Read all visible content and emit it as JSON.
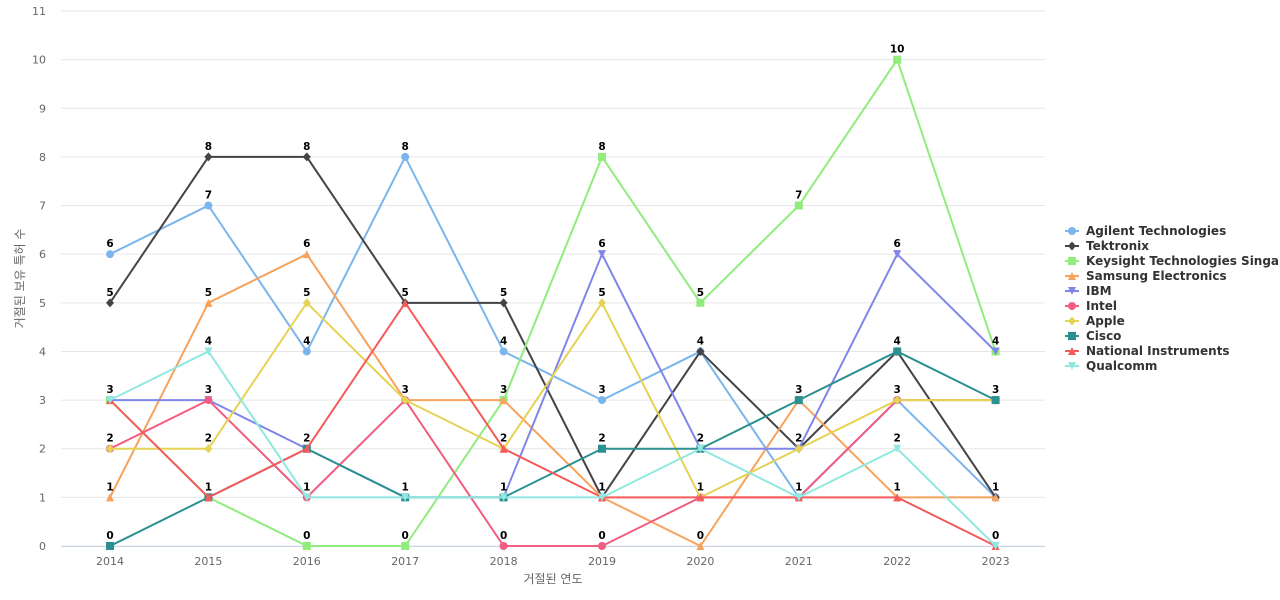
{
  "chart_data": {
    "type": "line",
    "x": [
      "2014",
      "2015",
      "2016",
      "2017",
      "2018",
      "2019",
      "2020",
      "2021",
      "2022",
      "2023"
    ],
    "xlabel": "거절된 연도",
    "ylabel": "거절된 보유 특허 수",
    "ylim": [
      0,
      11
    ],
    "yticks": [
      0,
      1,
      2,
      3,
      4,
      5,
      6,
      7,
      8,
      9,
      10,
      11
    ],
    "grid": true,
    "legend_position": "right",
    "series": [
      {
        "name": "Agilent Technologies",
        "color": "#7cb5ec",
        "marker": "circle",
        "values": [
          6,
          7,
          4,
          8,
          4,
          3,
          4,
          1,
          3,
          1
        ]
      },
      {
        "name": "Tektronix",
        "color": "#434348",
        "marker": "diamond",
        "values": [
          5,
          8,
          8,
          5,
          5,
          1,
          4,
          2,
          4,
          1
        ]
      },
      {
        "name": "Keysight Technologies Singa...",
        "color": "#90ed7d",
        "marker": "square",
        "values": [
          3,
          1,
          0,
          0,
          3,
          8,
          5,
          7,
          10,
          4
        ]
      },
      {
        "name": "Samsung Electronics",
        "color": "#f7a35c",
        "marker": "triangle",
        "values": [
          1,
          5,
          6,
          3,
          3,
          1,
          0,
          3,
          1,
          1
        ]
      },
      {
        "name": "IBM",
        "color": "#8085e9",
        "marker": "triangle-down",
        "values": [
          3,
          3,
          2,
          1,
          1,
          6,
          2,
          2,
          6,
          4
        ]
      },
      {
        "name": "Intel",
        "color": "#f15c80",
        "marker": "circle",
        "values": [
          2,
          3,
          1,
          3,
          0,
          0,
          1,
          1,
          3,
          3
        ]
      },
      {
        "name": "Apple",
        "color": "#e4d354",
        "marker": "diamond",
        "values": [
          2,
          2,
          5,
          3,
          2,
          5,
          1,
          2,
          3,
          3
        ]
      },
      {
        "name": "Cisco",
        "color": "#2b908f",
        "marker": "square",
        "values": [
          0,
          1,
          2,
          1,
          1,
          2,
          2,
          3,
          4,
          3
        ]
      },
      {
        "name": "National Instruments",
        "color": "#f45b5b",
        "marker": "triangle",
        "values": [
          3,
          1,
          2,
          5,
          2,
          1,
          1,
          1,
          1,
          0
        ]
      },
      {
        "name": "Qualcomm",
        "color": "#91e8e1",
        "marker": "triangle-down",
        "values": [
          3,
          4,
          1,
          1,
          1,
          1,
          2,
          1,
          2,
          0
        ]
      }
    ],
    "data_labels": [
      {
        "x_index": 0,
        "value": 6
      },
      {
        "x_index": 0,
        "value": 5
      },
      {
        "x_index": 0,
        "value": 3
      },
      {
        "x_index": 0,
        "value": 2
      },
      {
        "x_index": 0,
        "value": 1
      },
      {
        "x_index": 0,
        "value": 0
      },
      {
        "x_index": 1,
        "value": 8
      },
      {
        "x_index": 1,
        "value": 7
      },
      {
        "x_index": 1,
        "value": 5
      },
      {
        "x_index": 1,
        "value": 4
      },
      {
        "x_index": 1,
        "value": 3
      },
      {
        "x_index": 1,
        "value": 2
      },
      {
        "x_index": 1,
        "value": 1
      },
      {
        "x_index": 2,
        "value": 8
      },
      {
        "x_index": 2,
        "value": 6
      },
      {
        "x_index": 2,
        "value": 5
      },
      {
        "x_index": 2,
        "value": 4
      },
      {
        "x_index": 2,
        "value": 2
      },
      {
        "x_index": 2,
        "value": 1
      },
      {
        "x_index": 2,
        "value": 0
      },
      {
        "x_index": 3,
        "value": 8
      },
      {
        "x_index": 3,
        "value": 5
      },
      {
        "x_index": 3,
        "value": 3
      },
      {
        "x_index": 3,
        "value": 1
      },
      {
        "x_index": 3,
        "value": 0
      },
      {
        "x_index": 4,
        "value": 5
      },
      {
        "x_index": 4,
        "value": 4
      },
      {
        "x_index": 4,
        "value": 3
      },
      {
        "x_index": 4,
        "value": 2
      },
      {
        "x_index": 4,
        "value": 1
      },
      {
        "x_index": 4,
        "value": 0
      },
      {
        "x_index": 5,
        "value": 8
      },
      {
        "x_index": 5,
        "value": 6
      },
      {
        "x_index": 5,
        "value": 5
      },
      {
        "x_index": 5,
        "value": 3
      },
      {
        "x_index": 5,
        "value": 2
      },
      {
        "x_index": 5,
        "value": 1
      },
      {
        "x_index": 5,
        "value": 0
      },
      {
        "x_index": 6,
        "value": 5
      },
      {
        "x_index": 6,
        "value": 4
      },
      {
        "x_index": 6,
        "value": 2
      },
      {
        "x_index": 6,
        "value": 1
      },
      {
        "x_index": 6,
        "value": 0
      },
      {
        "x_index": 7,
        "value": 7
      },
      {
        "x_index": 7,
        "value": 3
      },
      {
        "x_index": 7,
        "value": 2
      },
      {
        "x_index": 7,
        "value": 1
      },
      {
        "x_index": 8,
        "value": 10
      },
      {
        "x_index": 8,
        "value": 6
      },
      {
        "x_index": 8,
        "value": 4
      },
      {
        "x_index": 8,
        "value": 3
      },
      {
        "x_index": 8,
        "value": 2
      },
      {
        "x_index": 8,
        "value": 1
      },
      {
        "x_index": 9,
        "value": 4
      },
      {
        "x_index": 9,
        "value": 3
      },
      {
        "x_index": 9,
        "value": 1
      },
      {
        "x_index": 9,
        "value": 0
      }
    ]
  }
}
